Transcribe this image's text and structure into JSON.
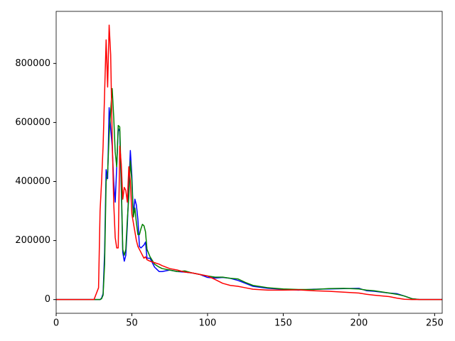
{
  "chart_data": {
    "type": "line",
    "x": [
      0,
      25,
      28,
      29,
      30,
      31,
      32,
      33,
      34,
      35,
      36,
      37,
      38,
      39,
      40,
      41,
      42,
      43,
      44,
      45,
      46,
      47,
      48,
      49,
      50,
      51,
      52,
      53,
      54,
      55,
      56,
      57,
      58,
      59,
      60,
      62,
      65,
      68,
      70,
      75,
      80,
      85,
      90,
      95,
      100,
      105,
      110,
      115,
      120,
      125,
      130,
      140,
      150,
      160,
      170,
      180,
      190,
      200,
      205,
      210,
      220,
      225,
      230,
      235,
      240,
      255
    ],
    "series": [
      {
        "color": "blue",
        "values": [
          0,
          0,
          0,
          0,
          5000,
          20000,
          160000,
          440000,
          410000,
          650000,
          580000,
          520000,
          400000,
          330000,
          450000,
          580000,
          570000,
          380000,
          160000,
          130000,
          150000,
          250000,
          380000,
          505000,
          420000,
          280000,
          340000,
          320000,
          270000,
          180000,
          175000,
          180000,
          185000,
          195000,
          140000,
          140000,
          110000,
          95000,
          95000,
          100000,
          95000,
          93000,
          90000,
          85000,
          75000,
          73000,
          75000,
          72000,
          65000,
          55000,
          45000,
          38000,
          35000,
          32000,
          35000,
          36000,
          37000,
          38000,
          30000,
          28000,
          22000,
          20000,
          12000,
          3000,
          0,
          0
        ]
      },
      {
        "color": "green",
        "values": [
          0,
          0,
          0,
          0,
          3000,
          15000,
          120000,
          400000,
          430000,
          560000,
          640000,
          715000,
          620000,
          500000,
          450000,
          590000,
          585000,
          400000,
          170000,
          150000,
          170000,
          270000,
          350000,
          470000,
          400000,
          280000,
          310000,
          260000,
          220000,
          220000,
          240000,
          255000,
          250000,
          230000,
          170000,
          145000,
          120000,
          110000,
          105000,
          100000,
          95000,
          97000,
          90000,
          85000,
          80000,
          76000,
          76000,
          72000,
          70000,
          58000,
          48000,
          40000,
          36000,
          34000,
          34000,
          37000,
          38000,
          36000,
          32000,
          30000,
          22000,
          18000,
          12000,
          3000,
          0,
          0
        ]
      },
      {
        "color": "red",
        "values": [
          0,
          0,
          40000,
          300000,
          400000,
          520000,
          700000,
          880000,
          720000,
          930000,
          830000,
          550000,
          330000,
          210000,
          175000,
          175000,
          520000,
          460000,
          340000,
          380000,
          370000,
          330000,
          450000,
          400000,
          290000,
          260000,
          230000,
          200000,
          180000,
          170000,
          160000,
          150000,
          140000,
          145000,
          135000,
          130000,
          125000,
          120000,
          115000,
          105000,
          100000,
          93000,
          90000,
          85000,
          80000,
          68000,
          55000,
          48000,
          45000,
          40000,
          35000,
          32000,
          32000,
          33000,
          30000,
          28000,
          25000,
          22000,
          18000,
          15000,
          10000,
          5000,
          1000,
          0,
          0,
          0
        ]
      }
    ],
    "xlim": [
      0,
      255
    ],
    "xticks": [
      0,
      50,
      100,
      150,
      200,
      250
    ],
    "ylim": [
      -46500,
      976500
    ],
    "yticks": [
      0,
      200000,
      400000,
      600000,
      800000
    ]
  }
}
